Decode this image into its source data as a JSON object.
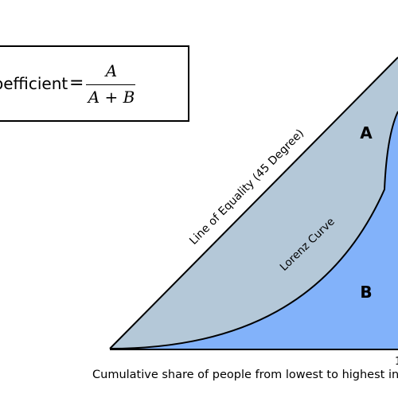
{
  "diagram": {
    "area_a_label": "A",
    "area_b_label": "B",
    "equality_line_label": "Line of Equality (45 Degree)",
    "lorenz_curve_label": "Lorenz Curve",
    "x_axis_label": "Cumulative share of people from lowest to highest inc",
    "x_tick_right": "1",
    "colors": {
      "area_a_fill": "#b4c8d8",
      "area_b_fill": "#82b2fa",
      "lines": "#000000"
    }
  },
  "formula": {
    "label": "oefficient",
    "equals": "=",
    "numerator": "A",
    "denominator": "A + B"
  }
}
